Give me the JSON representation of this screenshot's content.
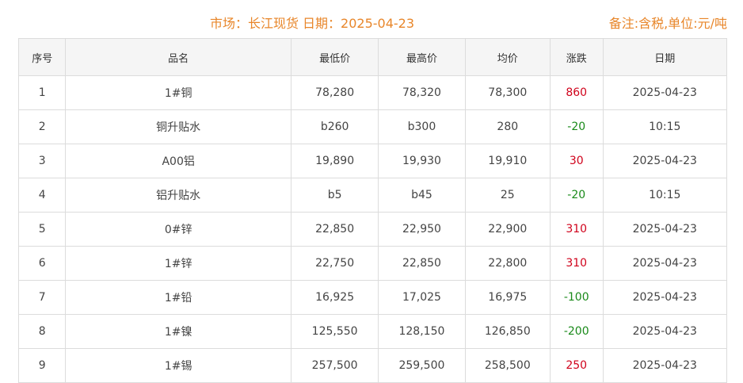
{
  "header": {
    "title": "市场：长江现货   日期：2025-04-23",
    "note": "备注:含税,单位:元/吨"
  },
  "colors": {
    "accent": "#e8862a",
    "up": "#d0021b",
    "down": "#1a8a1a"
  },
  "table": {
    "columns": [
      "序号",
      "品名",
      "最低价",
      "最高价",
      "均价",
      "涨跌",
      "日期"
    ],
    "rows": [
      [
        "1",
        "1#铜",
        "78,280",
        "78,320",
        "78,300",
        "860",
        "2025-04-23"
      ],
      [
        "2",
        "铜升贴水",
        "b260",
        "b300",
        "280",
        "-20",
        "10:15"
      ],
      [
        "3",
        "A00铝",
        "19,890",
        "19,930",
        "19,910",
        "30",
        "2025-04-23"
      ],
      [
        "4",
        "铝升贴水",
        "b5",
        "b45",
        "25",
        "-20",
        "10:15"
      ],
      [
        "5",
        "0#锌",
        "22,850",
        "22,950",
        "22,900",
        "310",
        "2025-04-23"
      ],
      [
        "6",
        "1#锌",
        "22,750",
        "22,850",
        "22,800",
        "310",
        "2025-04-23"
      ],
      [
        "7",
        "1#铅",
        "16,925",
        "17,025",
        "16,975",
        "-100",
        "2025-04-23"
      ],
      [
        "8",
        "1#镍",
        "125,550",
        "128,150",
        "126,850",
        "-200",
        "2025-04-23"
      ],
      [
        "9",
        "1#锡",
        "257,500",
        "259,500",
        "258,500",
        "250",
        "2025-04-23"
      ]
    ]
  }
}
